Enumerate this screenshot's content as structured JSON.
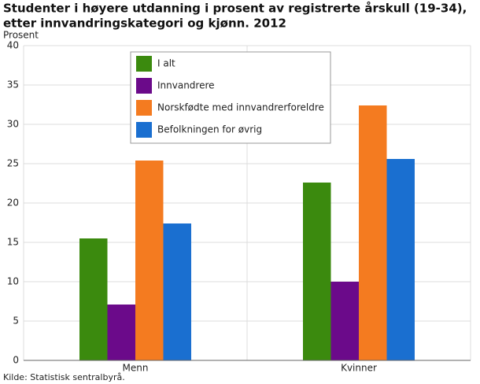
{
  "chart_data": {
    "type": "bar",
    "title": [
      "Studenter i høyere utdanning i prosent av registrerte årskull (19-34),",
      "etter innvandringskategori og kjønn. 2012"
    ],
    "y_label": "Prosent",
    "source": "Kilde: Statistisk sentralbyrå.",
    "categories": [
      "Menn",
      "Kvinner"
    ],
    "series": [
      {
        "name": "I alt",
        "color": "#3b8a0e",
        "values": [
          15.5,
          22.6
        ]
      },
      {
        "name": "Innvandrere",
        "color": "#6b0a8a",
        "values": [
          7.1,
          10.0
        ]
      },
      {
        "name": "Norskfødte med innvandrerforeldre",
        "color": "#f47b20",
        "values": [
          25.4,
          32.4
        ]
      },
      {
        "name": "Befolkningen for øvrig",
        "color": "#1a6fd0",
        "values": [
          17.4,
          25.6
        ]
      }
    ],
    "ylim": [
      0,
      40
    ],
    "yticks": [
      0,
      5,
      10,
      15,
      20,
      25,
      30,
      35,
      40
    ],
    "grid": true,
    "legend": "top"
  }
}
